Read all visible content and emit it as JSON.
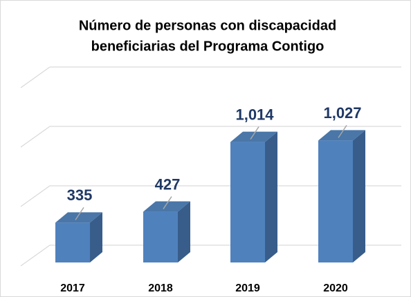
{
  "chart_data": {
    "type": "bar3d",
    "title": [
      "Número de personas con discapacidad",
      "beneficiarias del Programa Contigo"
    ],
    "categories": [
      "2017",
      "2018",
      "2019",
      "2020"
    ],
    "values": [
      335,
      427,
      1014,
      1027
    ],
    "value_labels": [
      "335",
      "427",
      "1,014",
      "1,027"
    ],
    "color": "#4f81bd",
    "ylim": [
      0,
      1500
    ],
    "yticks": [
      0,
      500,
      1000,
      1500
    ],
    "grid": true
  }
}
